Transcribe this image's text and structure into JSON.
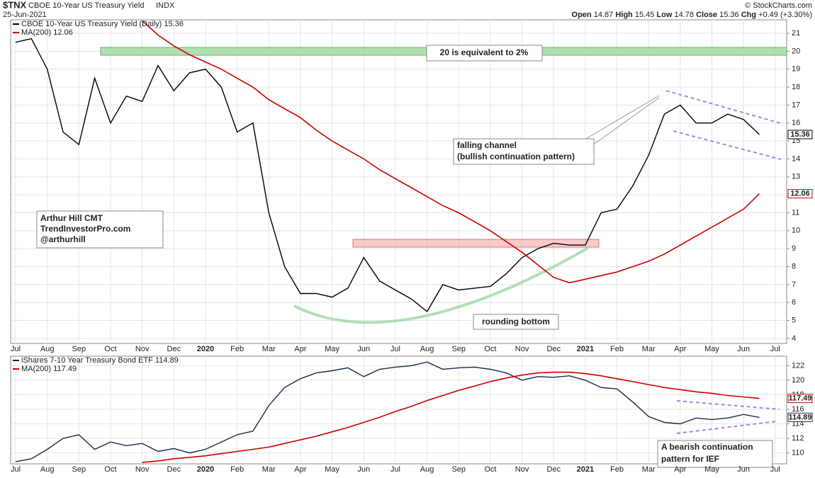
{
  "header": {
    "symbol": "$TNX",
    "name": "CBOE 10-Year US Treasury Yield",
    "exchange": "INDX",
    "date": "25-Jun-2021",
    "quote": [
      {
        "label": "Open",
        "value": "14.87"
      },
      {
        "label": "High",
        "value": "15.45"
      },
      {
        "label": "Low",
        "value": "14.78"
      },
      {
        "label": "Close",
        "value": "15.36"
      },
      {
        "label": "Chg",
        "value": "+0.49 (+3.30%)"
      }
    ],
    "copyright": "© StockCharts.com"
  },
  "annotations": {
    "level": "20 is equivalent to 2%",
    "channel": [
      "falling channel",
      "(bullish continuation pattern)"
    ],
    "author": [
      "Arthur Hill CMT",
      "TrendInvestorPro.com",
      "@arthurhill"
    ],
    "bottom": "rounding bottom",
    "ief": [
      "A bearish continuation",
      "pattern for IEF"
    ]
  },
  "chart_data": [
    {
      "type": "line",
      "grid": true,
      "categories": [
        "Jul",
        null,
        "Aug",
        null,
        "Sep",
        null,
        "Oct",
        null,
        "Nov",
        null,
        "Dec",
        null,
        "2020",
        null,
        "Feb",
        null,
        "Mar",
        null,
        "Apr",
        null,
        "May",
        null,
        "Jun",
        null,
        "Jul",
        null,
        "Aug",
        null,
        "Sep",
        null,
        "Oct",
        null,
        "Nov",
        null,
        "Dec",
        null,
        "2021",
        null,
        "Feb",
        null,
        "Mar",
        null,
        "Apr",
        null,
        "May",
        null,
        "Jun",
        null,
        "Jul"
      ],
      "series": [
        {
          "name": "CBOE 10-Year US Treasury Yield (Daily) 15.36",
          "color": "#000000",
          "values": [
            20.5,
            20.7,
            19.0,
            15.5,
            14.8,
            18.5,
            16.0,
            17.5,
            17.2,
            19.2,
            17.8,
            18.8,
            19.0,
            18.0,
            15.5,
            16.0,
            11.0,
            8.0,
            6.5,
            6.5,
            6.3,
            6.8,
            8.5,
            7.2,
            6.7,
            6.2,
            5.5,
            7.0,
            6.7,
            6.8,
            6.9,
            7.6,
            8.5,
            9.0,
            9.3,
            9.2,
            9.2,
            11.0,
            11.2,
            12.5,
            14.2,
            16.5,
            17.0,
            16.0,
            16.0,
            16.5,
            16.2,
            15.36,
            null
          ]
        },
        {
          "name": "MA(200) 12.06",
          "color": "#cc0000",
          "values": [
            null,
            null,
            null,
            null,
            null,
            null,
            null,
            null,
            21.7,
            20.9,
            20.3,
            19.8,
            19.4,
            19.0,
            18.5,
            18.0,
            17.3,
            16.8,
            16.3,
            15.6,
            15.0,
            14.5,
            14.0,
            13.4,
            12.9,
            12.4,
            11.9,
            11.4,
            11.0,
            10.5,
            10.0,
            9.4,
            8.8,
            8.1,
            7.4,
            7.1,
            7.3,
            7.5,
            7.7,
            8.0,
            8.3,
            8.7,
            9.2,
            9.7,
            10.2,
            10.7,
            11.2,
            12.06,
            null
          ]
        }
      ],
      "ylim": [
        3.72,
        21.75
      ],
      "yticks": [
        4,
        5,
        6,
        7,
        8,
        9,
        10,
        11,
        12,
        13,
        14,
        15,
        16,
        17,
        18,
        19,
        20,
        21
      ]
    },
    {
      "type": "line",
      "grid": true,
      "categories": [
        "Jul",
        null,
        "Aug",
        null,
        "Sep",
        null,
        "Oct",
        null,
        "Nov",
        null,
        "Dec",
        null,
        "2020",
        null,
        "Feb",
        null,
        "Mar",
        null,
        "Apr",
        null,
        "May",
        null,
        "Jun",
        null,
        "Jul",
        null,
        "Aug",
        null,
        "Sep",
        null,
        "Oct",
        null,
        "Nov",
        null,
        "Dec",
        null,
        "2021",
        null,
        "Feb",
        null,
        "Mar",
        null,
        "Apr",
        null,
        "May",
        null,
        "Jun",
        null,
        "Jul"
      ],
      "series": [
        {
          "name": "iShares 7-10 Year Treasury Bond ETF 114.89",
          "color": "#1a2a4a",
          "values": [
            108.8,
            109.2,
            110.5,
            112.0,
            112.5,
            110.5,
            111.5,
            111.0,
            111.3,
            110.2,
            110.6,
            110.0,
            110.5,
            111.5,
            112.5,
            113.0,
            116.5,
            119.0,
            120.2,
            121.0,
            121.3,
            121.7,
            120.5,
            121.5,
            121.8,
            122.0,
            122.5,
            121.5,
            121.7,
            121.8,
            121.5,
            121.0,
            120.0,
            120.5,
            120.4,
            120.6,
            120.0,
            119.0,
            118.8,
            117.0,
            115.0,
            114.2,
            114.0,
            114.8,
            114.6,
            114.8,
            115.3,
            114.89,
            null
          ]
        },
        {
          "name": "MA(200) 117.49",
          "color": "#cc0000",
          "values": [
            null,
            null,
            null,
            null,
            null,
            null,
            null,
            null,
            108.7,
            108.9,
            109.2,
            109.4,
            109.6,
            109.9,
            110.2,
            110.5,
            110.8,
            111.3,
            111.8,
            112.3,
            112.9,
            113.5,
            114.2,
            114.9,
            115.7,
            116.4,
            117.2,
            117.9,
            118.6,
            119.2,
            119.8,
            120.3,
            120.7,
            121.0,
            121.1,
            121.1,
            120.9,
            120.6,
            120.2,
            119.8,
            119.4,
            119.0,
            118.7,
            118.4,
            118.2,
            117.9,
            117.7,
            117.49,
            null
          ]
        }
      ],
      "ylim": [
        108.5,
        123.3
      ],
      "yticks": [
        110,
        112,
        114,
        116,
        118,
        120,
        122
      ]
    }
  ]
}
